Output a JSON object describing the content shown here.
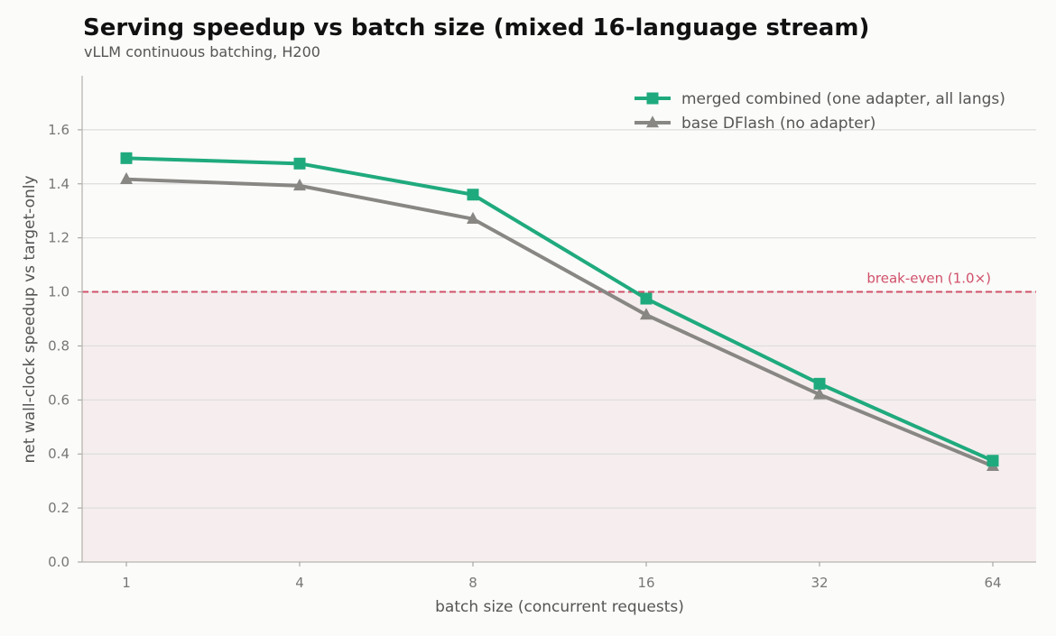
{
  "chart_data": {
    "type": "line",
    "title": "Serving speedup vs batch size (mixed 16-language stream)",
    "subtitle": "vLLM continuous batching, H200",
    "xlabel": "batch size (concurrent requests)",
    "ylabel": "net wall-clock speedup vs target-only",
    "x": [
      "1",
      "4",
      "8",
      "16",
      "32",
      "64"
    ],
    "ylim": [
      0,
      1.8
    ],
    "yticks": [
      0.0,
      0.2,
      0.4,
      0.6,
      0.8,
      1.0,
      1.2,
      1.4,
      1.6
    ],
    "grid": true,
    "legend_position": "top-right",
    "series": [
      {
        "name": "merged combined (one adapter, all langs)",
        "marker": "square",
        "color": "#1faa7d",
        "values": [
          1.495,
          1.475,
          1.36,
          0.975,
          0.66,
          0.375
        ]
      },
      {
        "name": "base DFlash (no adapter)",
        "marker": "triangle",
        "color": "#888784",
        "values": [
          1.417,
          1.393,
          1.27,
          0.915,
          0.62,
          0.355
        ]
      }
    ],
    "reference_line": {
      "y": 1.0,
      "label": "break-even (1.0×)",
      "color": "#d0506a"
    },
    "below_break_even_shade_color": "#f6eeee"
  }
}
